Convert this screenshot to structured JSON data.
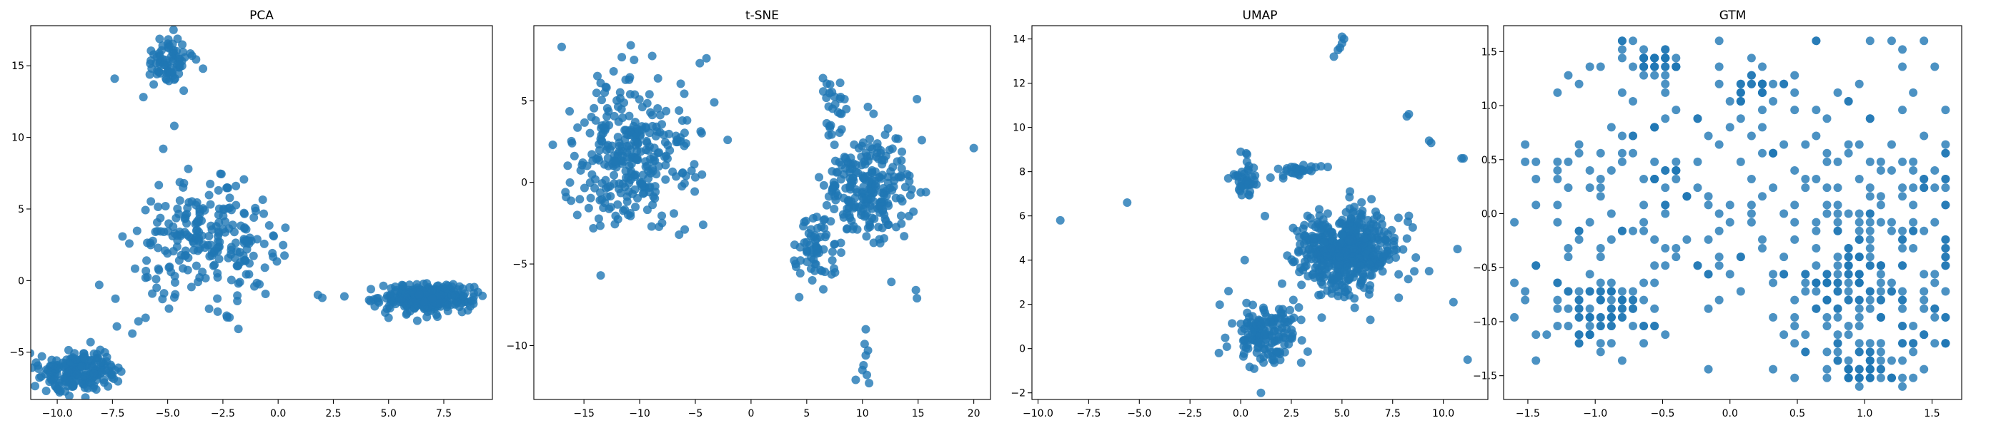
{
  "figure": {
    "background": "#ffffff",
    "marker_color": "#1f77b4",
    "marker_alpha": 0.8
  },
  "chart_data": [
    {
      "type": "scatter",
      "title": "PCA",
      "xlabel": "",
      "ylabel": "",
      "xlim": [
        -11.2,
        9.7
      ],
      "ylim": [
        -8.3,
        17.8
      ],
      "xticks": [
        -10.0,
        -7.5,
        -5.0,
        -2.5,
        0.0,
        2.5,
        5.0,
        7.5
      ],
      "xtick_labels": [
        "−10.0",
        "−7.5",
        "−5.0",
        "−2.5",
        "0.0",
        "2.5",
        "5.0",
        "7.5"
      ],
      "yticks": [
        -5,
        0,
        5,
        10,
        15
      ],
      "ytick_labels": [
        "−5",
        "0",
        "5",
        "10",
        "15"
      ],
      "grid": false,
      "clusters": [
        {
          "cx": -5.0,
          "cy": 15.3,
          "sx": 0.55,
          "sy": 0.9,
          "n": 75
        },
        {
          "cx": -3.2,
          "cy": 2.6,
          "sx": 1.6,
          "sy": 1.9,
          "n": 230
        },
        {
          "cx": 6.7,
          "cy": -1.2,
          "sx": 1.0,
          "sy": 0.45,
          "n": 330
        },
        {
          "cx": -9.0,
          "cy": -6.3,
          "sx": 0.9,
          "sy": 0.75,
          "n": 200
        }
      ],
      "points": [
        [
          -7.4,
          14.1
        ],
        [
          -3.4,
          14.8
        ],
        [
          -5.2,
          9.2
        ],
        [
          -4.7,
          10.8
        ],
        [
          -3.9,
          15.7
        ],
        [
          -8.1,
          -0.3
        ],
        [
          -6.6,
          -3.7
        ],
        [
          -7.3,
          -3.2
        ],
        [
          -6.0,
          -2.6
        ],
        [
          -10.5,
          -7.7
        ],
        [
          -5.5,
          -0.5
        ],
        [
          -6.0,
          0.2
        ],
        [
          -0.6,
          0.9
        ],
        [
          -0.2,
          3.1
        ],
        [
          -1.3,
          1.2
        ],
        [
          -1.8,
          -0.2
        ],
        [
          1.8,
          -1.0
        ],
        [
          -4.3,
          6.5
        ],
        [
          -2.7,
          6.3
        ],
        [
          -5.1,
          5.2
        ],
        [
          -1.1,
          4.4
        ],
        [
          8.7,
          -1.8
        ],
        [
          4.2,
          -0.6
        ],
        [
          5.0,
          -2.6
        ],
        [
          6.3,
          -2.8
        ],
        [
          3.0,
          -1.1
        ],
        [
          2.0,
          -1.2
        ]
      ]
    },
    {
      "type": "scatter",
      "title": "t-SNE",
      "xlabel": "",
      "ylabel": "",
      "xlim": [
        -19.5,
        21.5
      ],
      "ylim": [
        -13.3,
        9.6
      ],
      "xticks": [
        -15,
        -10,
        -5,
        0,
        5,
        10,
        15,
        20
      ],
      "xtick_labels": [
        "−15",
        "−10",
        "−5",
        "0",
        "5",
        "10",
        "15",
        "20"
      ],
      "yticks": [
        -10,
        -5,
        0,
        5
      ],
      "ytick_labels": [
        "−10",
        "−5",
        "0",
        "5"
      ],
      "grid": false,
      "clusters": [
        {
          "cx": -10.5,
          "cy": 1.6,
          "sx": 2.5,
          "sy": 2.3,
          "n": 300
        },
        {
          "cx": 10.5,
          "cy": -0.5,
          "sx": 2.0,
          "sy": 1.6,
          "n": 230
        },
        {
          "cx": 5.8,
          "cy": -4.1,
          "sx": 0.9,
          "sy": 1.0,
          "n": 60
        },
        {
          "cx": 7.4,
          "cy": 4.7,
          "sx": 0.5,
          "sy": 0.9,
          "n": 25
        }
      ],
      "points": [
        [
          -17.0,
          8.3
        ],
        [
          -17.8,
          2.3
        ],
        [
          -13.5,
          -5.7
        ],
        [
          -10.8,
          8.4
        ],
        [
          -10.5,
          7.5
        ],
        [
          -4.0,
          7.6
        ],
        [
          -4.6,
          7.3
        ],
        [
          -3.3,
          4.9
        ],
        [
          -2.1,
          2.6
        ],
        [
          -4.3,
          -2.6
        ],
        [
          -15.6,
          -2.0
        ],
        [
          -16.6,
          -0.9
        ],
        [
          20.0,
          2.1
        ],
        [
          14.9,
          -7.1
        ],
        [
          14.8,
          -6.6
        ],
        [
          14.9,
          5.1
        ],
        [
          14.0,
          0.5
        ],
        [
          15.7,
          -0.6
        ],
        [
          10.3,
          -9.0
        ],
        [
          10.2,
          -9.9
        ],
        [
          10.3,
          -10.6
        ],
        [
          10.1,
          -11.2
        ],
        [
          10.4,
          -11.8
        ],
        [
          9.4,
          -12.1
        ],
        [
          10.6,
          -12.3
        ],
        [
          10.0,
          -11.5
        ],
        [
          10.5,
          -10.3
        ],
        [
          8.0,
          6.1
        ],
        [
          7.1,
          6.0
        ],
        [
          12.3,
          3.3
        ],
        [
          11.0,
          4.2
        ],
        [
          6.8,
          -1.4
        ],
        [
          5.5,
          -6.0
        ],
        [
          4.0,
          -5.0
        ],
        [
          12.6,
          -6.1
        ]
      ]
    },
    {
      "type": "scatter",
      "title": "UMAP",
      "xlabel": "",
      "ylabel": "",
      "xlim": [
        -10.3,
        12.2
      ],
      "ylim": [
        -2.3,
        14.6
      ],
      "xticks": [
        -10.0,
        -7.5,
        -5.0,
        -2.5,
        0.0,
        2.5,
        5.0,
        7.5,
        10.0
      ],
      "xtick_labels": [
        "−10.0",
        "−7.5",
        "−5.0",
        "−2.5",
        "0.0",
        "2.5",
        "5.0",
        "7.5",
        "10.0"
      ],
      "yticks": [
        -2,
        0,
        2,
        4,
        6,
        8,
        10,
        12,
        14
      ],
      "ytick_labels": [
        "−2",
        "0",
        "2",
        "4",
        "6",
        "8",
        "10",
        "12",
        "14"
      ],
      "grid": false,
      "clusters": [
        {
          "cx": 5.1,
          "cy": 4.4,
          "sx": 1.2,
          "sy": 0.9,
          "n": 520
        },
        {
          "cx": 1.2,
          "cy": 0.7,
          "sx": 0.9,
          "sy": 0.65,
          "n": 150
        },
        {
          "cx": 0.3,
          "cy": 7.6,
          "sx": 0.35,
          "sy": 0.45,
          "n": 40
        },
        {
          "cx": 2.9,
          "cy": 8.0,
          "sx": 0.6,
          "sy": 0.2,
          "n": 25
        }
      ],
      "points": [
        [
          -8.9,
          5.8
        ],
        [
          -5.6,
          6.6
        ],
        [
          4.6,
          13.2
        ],
        [
          4.8,
          13.5
        ],
        [
          5.0,
          13.8
        ],
        [
          5.1,
          14.0
        ],
        [
          4.9,
          13.6
        ],
        [
          5.0,
          14.1
        ],
        [
          8.2,
          10.5
        ],
        [
          8.3,
          10.6
        ],
        [
          9.4,
          9.3
        ],
        [
          9.3,
          9.4
        ],
        [
          10.9,
          8.6
        ],
        [
          11.0,
          8.6
        ],
        [
          10.7,
          4.5
        ],
        [
          10.5,
          2.1
        ],
        [
          11.2,
          -0.5
        ],
        [
          1.0,
          -2.0
        ],
        [
          -0.6,
          2.6
        ],
        [
          0.2,
          4.0
        ],
        [
          2.6,
          2.2
        ],
        [
          0.0,
          8.9
        ],
        [
          3.1,
          8.3
        ],
        [
          3.7,
          8.2
        ],
        [
          2.1,
          7.7
        ],
        [
          8.3,
          6.0
        ],
        [
          7.8,
          2.3
        ],
        [
          9.3,
          3.5
        ],
        [
          4.0,
          1.4
        ],
        [
          3.3,
          6.0
        ],
        [
          6.4,
          1.3
        ]
      ]
    },
    {
      "type": "scatter",
      "title": "GTM",
      "xlabel": "",
      "ylabel": "",
      "xlim": [
        -1.68,
        1.72
      ],
      "ylim": [
        -1.72,
        1.74
      ],
      "xticks": [
        -1.5,
        -1.0,
        -0.5,
        0.0,
        0.5,
        1.0,
        1.5
      ],
      "xtick_labels": [
        "−1.5",
        "−1.0",
        "−0.5",
        "0.0",
        "0.5",
        "1.0",
        "1.5"
      ],
      "yticks": [
        -1.5,
        -1.0,
        -0.5,
        0.0,
        0.5,
        1.0,
        1.5
      ],
      "ytick_labels": [
        "−1.5",
        "−1.0",
        "−0.5",
        "0.0",
        "0.5",
        "1.0",
        "1.5"
      ],
      "grid": false,
      "grid_units": 41,
      "clusters": [
        {
          "cx": -0.98,
          "cy": -0.95,
          "sx": 0.22,
          "sy": 0.18,
          "n": 80
        },
        {
          "cx": -0.55,
          "cy": 1.4,
          "sx": 0.12,
          "sy": 0.08,
          "n": 40
        },
        {
          "cx": 0.85,
          "cy": -0.55,
          "sx": 0.2,
          "sy": 0.15,
          "n": 50
        },
        {
          "cx": 1.0,
          "cy": -1.45,
          "sx": 0.12,
          "sy": 0.08,
          "n": 40
        },
        {
          "cx": 1.05,
          "cy": 0.05,
          "sx": 0.5,
          "sy": 0.7,
          "n": 160
        },
        {
          "cx": -0.6,
          "cy": 0.1,
          "sx": 0.5,
          "sy": 0.6,
          "n": 130
        },
        {
          "cx": 0.15,
          "cy": 1.15,
          "sx": 0.12,
          "sy": 0.12,
          "n": 30
        },
        {
          "cx": 1.0,
          "cy": -1.0,
          "sx": 0.35,
          "sy": 0.25,
          "n": 60
        }
      ],
      "points": [
        [
          -0.05,
          1.6
        ],
        [
          0.62,
          1.6
        ],
        [
          1.22,
          1.6
        ],
        [
          -1.55,
          0.45
        ],
        [
          -1.55,
          -0.75
        ],
        [
          -1.45,
          -1.38
        ],
        [
          1.6,
          0.95
        ],
        [
          1.6,
          0.35
        ],
        [
          -0.2,
          -1.45
        ],
        [
          0.28,
          -1.42
        ],
        [
          -1.3,
          1.12
        ],
        [
          -1.1,
          1.2
        ]
      ]
    }
  ]
}
